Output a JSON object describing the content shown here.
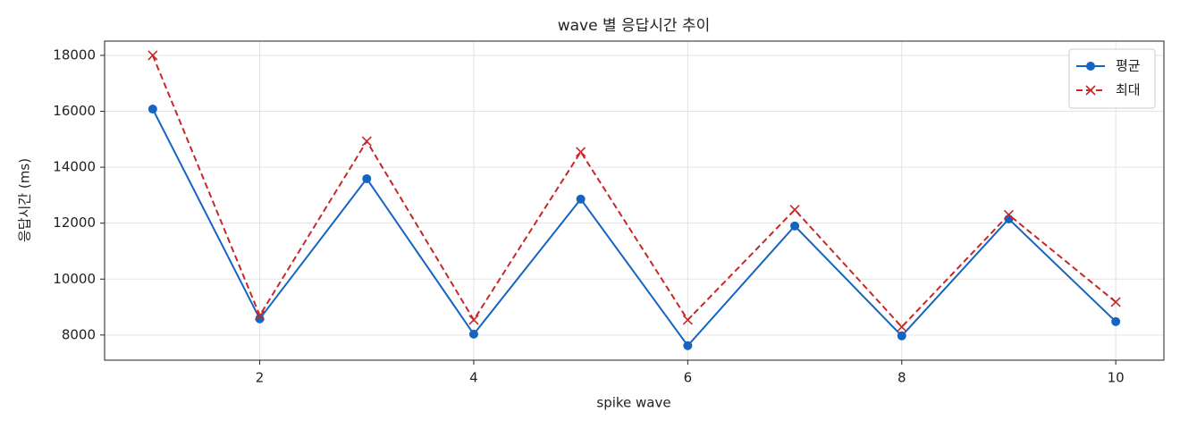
{
  "chart_data": {
    "type": "line",
    "title": "wave 별 응답시간 추이",
    "xlabel": "spike wave",
    "ylabel": "응답시간 (ms)",
    "x": [
      1,
      2,
      3,
      4,
      5,
      6,
      7,
      8,
      9,
      10
    ],
    "series": [
      {
        "name": "평균",
        "color": "#1565c0",
        "marker": "o",
        "linestyle": "solid",
        "values": [
          16080,
          8580,
          13590,
          8030,
          12860,
          7620,
          11900,
          7970,
          12150,
          8480
        ]
      },
      {
        "name": "최대",
        "color": "#c62828",
        "marker": "x",
        "linestyle": "dashed",
        "values": [
          18000,
          8700,
          14930,
          8540,
          14550,
          8540,
          12480,
          8290,
          12300,
          9180
        ]
      }
    ],
    "xlim": [
      0.55,
      10.45
    ],
    "xticks": [
      2,
      4,
      6,
      8,
      10
    ],
    "ylim": [
      7100,
      18510
    ],
    "yticks": [
      8000,
      10000,
      12000,
      14000,
      16000,
      18000
    ],
    "grid": true,
    "legend": "upper right"
  }
}
